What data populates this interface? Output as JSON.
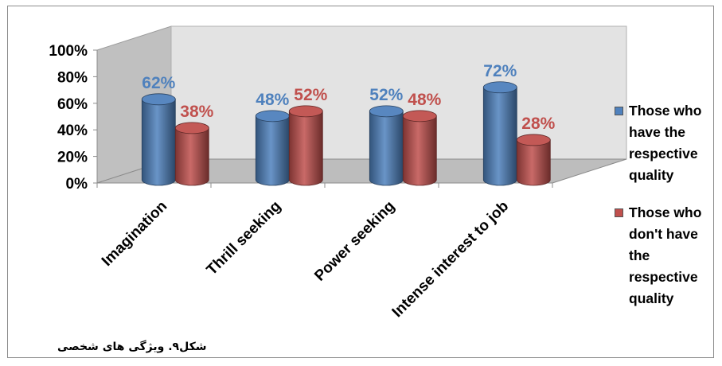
{
  "chart_data": {
    "type": "bar",
    "style": "3d-cylinder",
    "categories": [
      "Imagination",
      "Thrill seeking",
      "Power seeking",
      "Intense interest to job"
    ],
    "series": [
      {
        "name": "Those who have the respective quality",
        "values": [
          62,
          48,
          52,
          72
        ],
        "labels": [
          "62%",
          "48%",
          "52%",
          "72%"
        ],
        "color": "#4f81bd"
      },
      {
        "name": "Those who don't have the respective quality",
        "values": [
          38,
          52,
          48,
          28
        ],
        "labels": [
          "38%",
          "52%",
          "48%",
          "28%"
        ],
        "color": "#c0504d"
      }
    ],
    "ylim": [
      0,
      100
    ],
    "yticks": [
      "0%",
      "20%",
      "40%",
      "60%",
      "80%",
      "100%"
    ],
    "legend_position": "right",
    "grid": false
  },
  "legend": {
    "items": [
      {
        "lines": [
          "Those who",
          "have the",
          "respective",
          "quality"
        ],
        "color": "#4f81bd"
      },
      {
        "lines": [
          "Those who",
          "don't have",
          "the",
          "respective",
          "quality"
        ],
        "color": "#c0504d"
      }
    ]
  },
  "caption": "شکل۹. ویژگی های شخصی",
  "colors": {
    "back_wall": "#e3e3e3",
    "floor": "#bdbdbd",
    "label_blue": "#4f81bd",
    "label_red": "#c0504d"
  }
}
